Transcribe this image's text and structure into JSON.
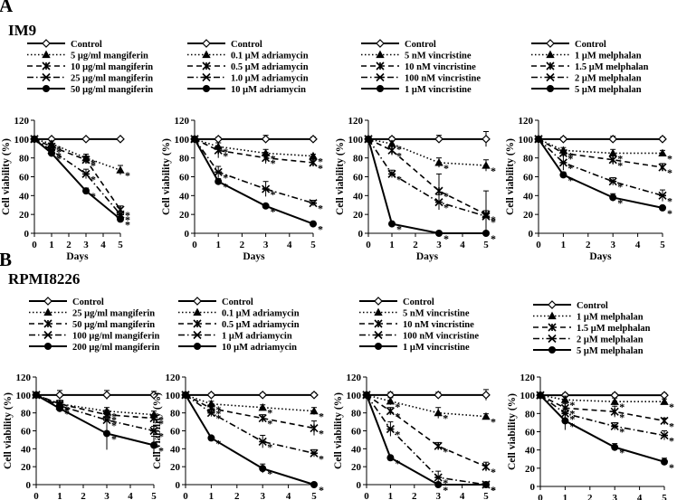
{
  "sections": [
    {
      "letter": "A",
      "cell_line": "IM9"
    },
    {
      "letter": "B",
      "cell_line": "RPMI8226"
    }
  ],
  "chart_data": [
    {
      "type": "line",
      "section": "A",
      "xlabel": "Days",
      "ylabel": "Cell viability (%)",
      "ylim": [
        0,
        120
      ],
      "xlim": [
        0,
        5
      ],
      "grid": false,
      "legend_position": "top",
      "x": [
        0,
        1,
        3,
        5
      ],
      "series": [
        {
          "name": "Control",
          "marker": "diamond",
          "line": "solid",
          "values": [
            100,
            100,
            100,
            100
          ],
          "errors": [
            0,
            0,
            0,
            0
          ]
        },
        {
          "name": "5 μg/ml mangiferin",
          "marker": "triangle",
          "line": "dotted",
          "values": [
            100,
            95,
            80,
            67
          ],
          "errors": [
            0,
            3,
            4,
            5
          ]
        },
        {
          "name": "10 μg/ml mangiferin",
          "marker": "cross",
          "line": "dashed",
          "values": [
            100,
            92,
            78,
            25
          ],
          "errors": [
            0,
            3,
            4,
            4
          ]
        },
        {
          "name": "25 μg/ml mangiferin",
          "marker": "x",
          "line": "dashdot",
          "values": [
            100,
            88,
            63,
            20
          ],
          "errors": [
            0,
            3,
            5,
            3
          ]
        },
        {
          "name": "50 μg/ml mangiferin",
          "marker": "circle",
          "line": "solid",
          "values": [
            100,
            85,
            45,
            15
          ],
          "errors": [
            0,
            3,
            3,
            3
          ]
        }
      ]
    },
    {
      "type": "line",
      "section": "A",
      "xlabel": "Days",
      "ylabel": "Cell viability (%)",
      "ylim": [
        0,
        120
      ],
      "xlim": [
        0,
        5
      ],
      "grid": false,
      "legend_position": "top",
      "x": [
        0,
        1,
        3,
        5
      ],
      "series": [
        {
          "name": "Control",
          "marker": "diamond",
          "line": "solid",
          "values": [
            100,
            100,
            100,
            100
          ],
          "errors": [
            0,
            2,
            4,
            2
          ]
        },
        {
          "name": "0.1 μM adriamycin",
          "marker": "triangle",
          "line": "dotted",
          "values": [
            100,
            92,
            85,
            82
          ],
          "errors": [
            0,
            4,
            4,
            2
          ]
        },
        {
          "name": "0.5 μM adriamycin",
          "marker": "cross",
          "line": "dashed",
          "values": [
            100,
            88,
            80,
            75
          ],
          "errors": [
            0,
            8,
            6,
            3
          ]
        },
        {
          "name": "1.0 μM adriamycin",
          "marker": "x",
          "line": "dashdot",
          "values": [
            100,
            65,
            47,
            32
          ],
          "errors": [
            0,
            6,
            8,
            3
          ]
        },
        {
          "name": "10 μM adriamycin",
          "marker": "circle",
          "line": "solid",
          "values": [
            100,
            55,
            29,
            10
          ],
          "errors": [
            0,
            3,
            2,
            1
          ]
        }
      ]
    },
    {
      "type": "line",
      "section": "A",
      "xlabel": "Days",
      "ylabel": "Cell viability (%)",
      "ylim": [
        0,
        120
      ],
      "xlim": [
        0,
        5
      ],
      "grid": false,
      "legend_position": "top",
      "x": [
        0,
        1,
        3,
        5
      ],
      "series": [
        {
          "name": "Control",
          "marker": "diamond",
          "line": "solid",
          "values": [
            100,
            100,
            100,
            100
          ],
          "errors": [
            0,
            2,
            4,
            8
          ]
        },
        {
          "name": "5 nM vincristine",
          "marker": "triangle",
          "line": "dotted",
          "values": [
            100,
            95,
            75,
            72
          ],
          "errors": [
            0,
            3,
            5,
            6
          ]
        },
        {
          "name": "10 nM vincristine",
          "marker": "cross",
          "line": "dashed",
          "values": [
            100,
            88,
            45,
            20
          ],
          "errors": [
            0,
            5,
            18,
            25
          ]
        },
        {
          "name": "100 nM vincristine",
          "marker": "x",
          "line": "dashdot",
          "values": [
            100,
            63,
            33,
            18
          ],
          "errors": [
            0,
            4,
            8,
            6
          ]
        },
        {
          "name": "1 μM vincristine",
          "marker": "circle",
          "line": "solid",
          "values": [
            100,
            10,
            0,
            0
          ],
          "errors": [
            0,
            2,
            0,
            0
          ]
        }
      ]
    },
    {
      "type": "line",
      "section": "A",
      "xlabel": "Days",
      "ylabel": "Cell viability (%)",
      "ylim": [
        0,
        120
      ],
      "xlim": [
        0,
        5
      ],
      "grid": false,
      "legend_position": "top",
      "x": [
        0,
        1,
        3,
        5
      ],
      "series": [
        {
          "name": "Control",
          "marker": "diamond",
          "line": "solid",
          "values": [
            100,
            100,
            100,
            100
          ],
          "errors": [
            0,
            2,
            3,
            2
          ]
        },
        {
          "name": "1 μM melphalan",
          "marker": "triangle",
          "line": "dotted",
          "values": [
            100,
            88,
            85,
            85
          ],
          "errors": [
            0,
            3,
            4,
            3
          ]
        },
        {
          "name": "1.5 μM melphalan",
          "marker": "cross",
          "line": "dashed",
          "values": [
            100,
            85,
            78,
            70
          ],
          "errors": [
            0,
            3,
            5,
            4
          ]
        },
        {
          "name": "2 μM melphalan",
          "marker": "x",
          "line": "dashdot",
          "values": [
            100,
            75,
            55,
            40
          ],
          "errors": [
            0,
            8,
            4,
            6
          ]
        },
        {
          "name": "5 μM melphalan",
          "marker": "circle",
          "line": "solid",
          "values": [
            100,
            62,
            38,
            27
          ],
          "errors": [
            0,
            3,
            4,
            2
          ]
        }
      ]
    },
    {
      "type": "line",
      "section": "B",
      "xlabel": "Days",
      "ylabel": "Cell viability (%)",
      "ylim": [
        0,
        120
      ],
      "xlim": [
        0,
        5
      ],
      "grid": false,
      "legend_position": "top",
      "x": [
        0,
        1,
        3,
        5
      ],
      "series": [
        {
          "name": "Control",
          "marker": "diamond",
          "line": "solid",
          "values": [
            100,
            100,
            100,
            100
          ],
          "errors": [
            0,
            5,
            5,
            4
          ]
        },
        {
          "name": "25 μg/ml mangiferin",
          "marker": "triangle",
          "line": "dotted",
          "values": [
            100,
            90,
            82,
            78
          ],
          "errors": [
            0,
            4,
            4,
            4
          ]
        },
        {
          "name": "50 μg/ml mangiferin",
          "marker": "cross",
          "line": "dashed",
          "values": [
            100,
            90,
            78,
            74
          ],
          "errors": [
            0,
            4,
            5,
            4
          ]
        },
        {
          "name": "100 μg/ml mangiferin",
          "marker": "x",
          "line": "dashdot",
          "values": [
            100,
            88,
            72,
            60
          ],
          "errors": [
            0,
            4,
            6,
            5
          ]
        },
        {
          "name": "200 μg/ml mangiferin",
          "marker": "circle",
          "line": "solid",
          "values": [
            100,
            85,
            57,
            44
          ],
          "errors": [
            0,
            4,
            18,
            10
          ]
        }
      ]
    },
    {
      "type": "line",
      "section": "B",
      "xlabel": "Days",
      "ylabel": "Cell viability (%)",
      "ylim": [
        0,
        120
      ],
      "xlim": [
        0,
        5
      ],
      "grid": false,
      "legend_position": "top",
      "x": [
        0,
        1,
        3,
        5
      ],
      "series": [
        {
          "name": "Control",
          "marker": "diamond",
          "line": "solid",
          "values": [
            100,
            100,
            100,
            100
          ],
          "errors": [
            0,
            2,
            2,
            2
          ]
        },
        {
          "name": "0.1 μM adriamycin",
          "marker": "triangle",
          "line": "dotted",
          "values": [
            100,
            90,
            86,
            82
          ],
          "errors": [
            0,
            3,
            3,
            4
          ]
        },
        {
          "name": "0.5 μM adriamycin",
          "marker": "cross",
          "line": "dashed",
          "values": [
            100,
            85,
            74,
            63
          ],
          "errors": [
            0,
            3,
            4,
            8
          ]
        },
        {
          "name": "1 μM adriamycin",
          "marker": "x",
          "line": "dashdot",
          "values": [
            100,
            80,
            48,
            35
          ],
          "errors": [
            0,
            4,
            7,
            4
          ]
        },
        {
          "name": "10 μM adriamycin",
          "marker": "circle",
          "line": "solid",
          "values": [
            100,
            52,
            18,
            0
          ],
          "errors": [
            0,
            2,
            5,
            0
          ]
        }
      ]
    },
    {
      "type": "line",
      "section": "B",
      "xlabel": "Days",
      "ylabel": "Cell viability (%)",
      "ylim": [
        0,
        120
      ],
      "xlim": [
        0,
        5
      ],
      "grid": false,
      "legend_position": "top",
      "x": [
        0,
        1,
        3,
        5
      ],
      "series": [
        {
          "name": "Control",
          "marker": "diamond",
          "line": "solid",
          "values": [
            100,
            100,
            100,
            100
          ],
          "errors": [
            0,
            3,
            3,
            6
          ]
        },
        {
          "name": "5 nM vincristine",
          "marker": "triangle",
          "line": "dotted",
          "values": [
            100,
            93,
            80,
            76
          ],
          "errors": [
            0,
            4,
            6,
            3
          ]
        },
        {
          "name": "10 nM vincristine",
          "marker": "cross",
          "line": "dashed",
          "values": [
            100,
            82,
            43,
            20
          ],
          "errors": [
            0,
            4,
            4,
            5
          ]
        },
        {
          "name": "100 nM vincristine",
          "marker": "x",
          "line": "dashdot",
          "values": [
            100,
            62,
            8,
            0
          ],
          "errors": [
            0,
            8,
            7,
            0
          ]
        },
        {
          "name": "1 μM vincristine",
          "marker": "circle",
          "line": "solid",
          "values": [
            100,
            30,
            0,
            0
          ],
          "errors": [
            0,
            2,
            0,
            0
          ]
        }
      ]
    },
    {
      "type": "line",
      "section": "B",
      "xlabel": "Days",
      "ylabel": "Cell viability (%)",
      "ylim": [
        0,
        120
      ],
      "xlim": [
        0,
        5
      ],
      "grid": false,
      "legend_position": "top",
      "x": [
        0,
        1,
        3,
        5
      ],
      "series": [
        {
          "name": "Control",
          "marker": "diamond",
          "line": "solid",
          "values": [
            100,
            100,
            100,
            100
          ],
          "errors": [
            0,
            2,
            2,
            2
          ]
        },
        {
          "name": "1 μM melphalan",
          "marker": "triangle",
          "line": "dotted",
          "values": [
            100,
            95,
            93,
            93
          ],
          "errors": [
            0,
            4,
            4,
            3
          ]
        },
        {
          "name": "1.5 μM melphalan",
          "marker": "cross",
          "line": "dashed",
          "values": [
            100,
            86,
            82,
            72
          ],
          "errors": [
            0,
            5,
            6,
            3
          ]
        },
        {
          "name": "2 μM melphalan",
          "marker": "x",
          "line": "dashdot",
          "values": [
            100,
            80,
            66,
            56
          ],
          "errors": [
            0,
            6,
            4,
            5
          ]
        },
        {
          "name": "5 μM melphalan",
          "marker": "circle",
          "line": "solid",
          "values": [
            100,
            72,
            43,
            27
          ],
          "errors": [
            0,
            10,
            4,
            4
          ]
        }
      ]
    }
  ]
}
